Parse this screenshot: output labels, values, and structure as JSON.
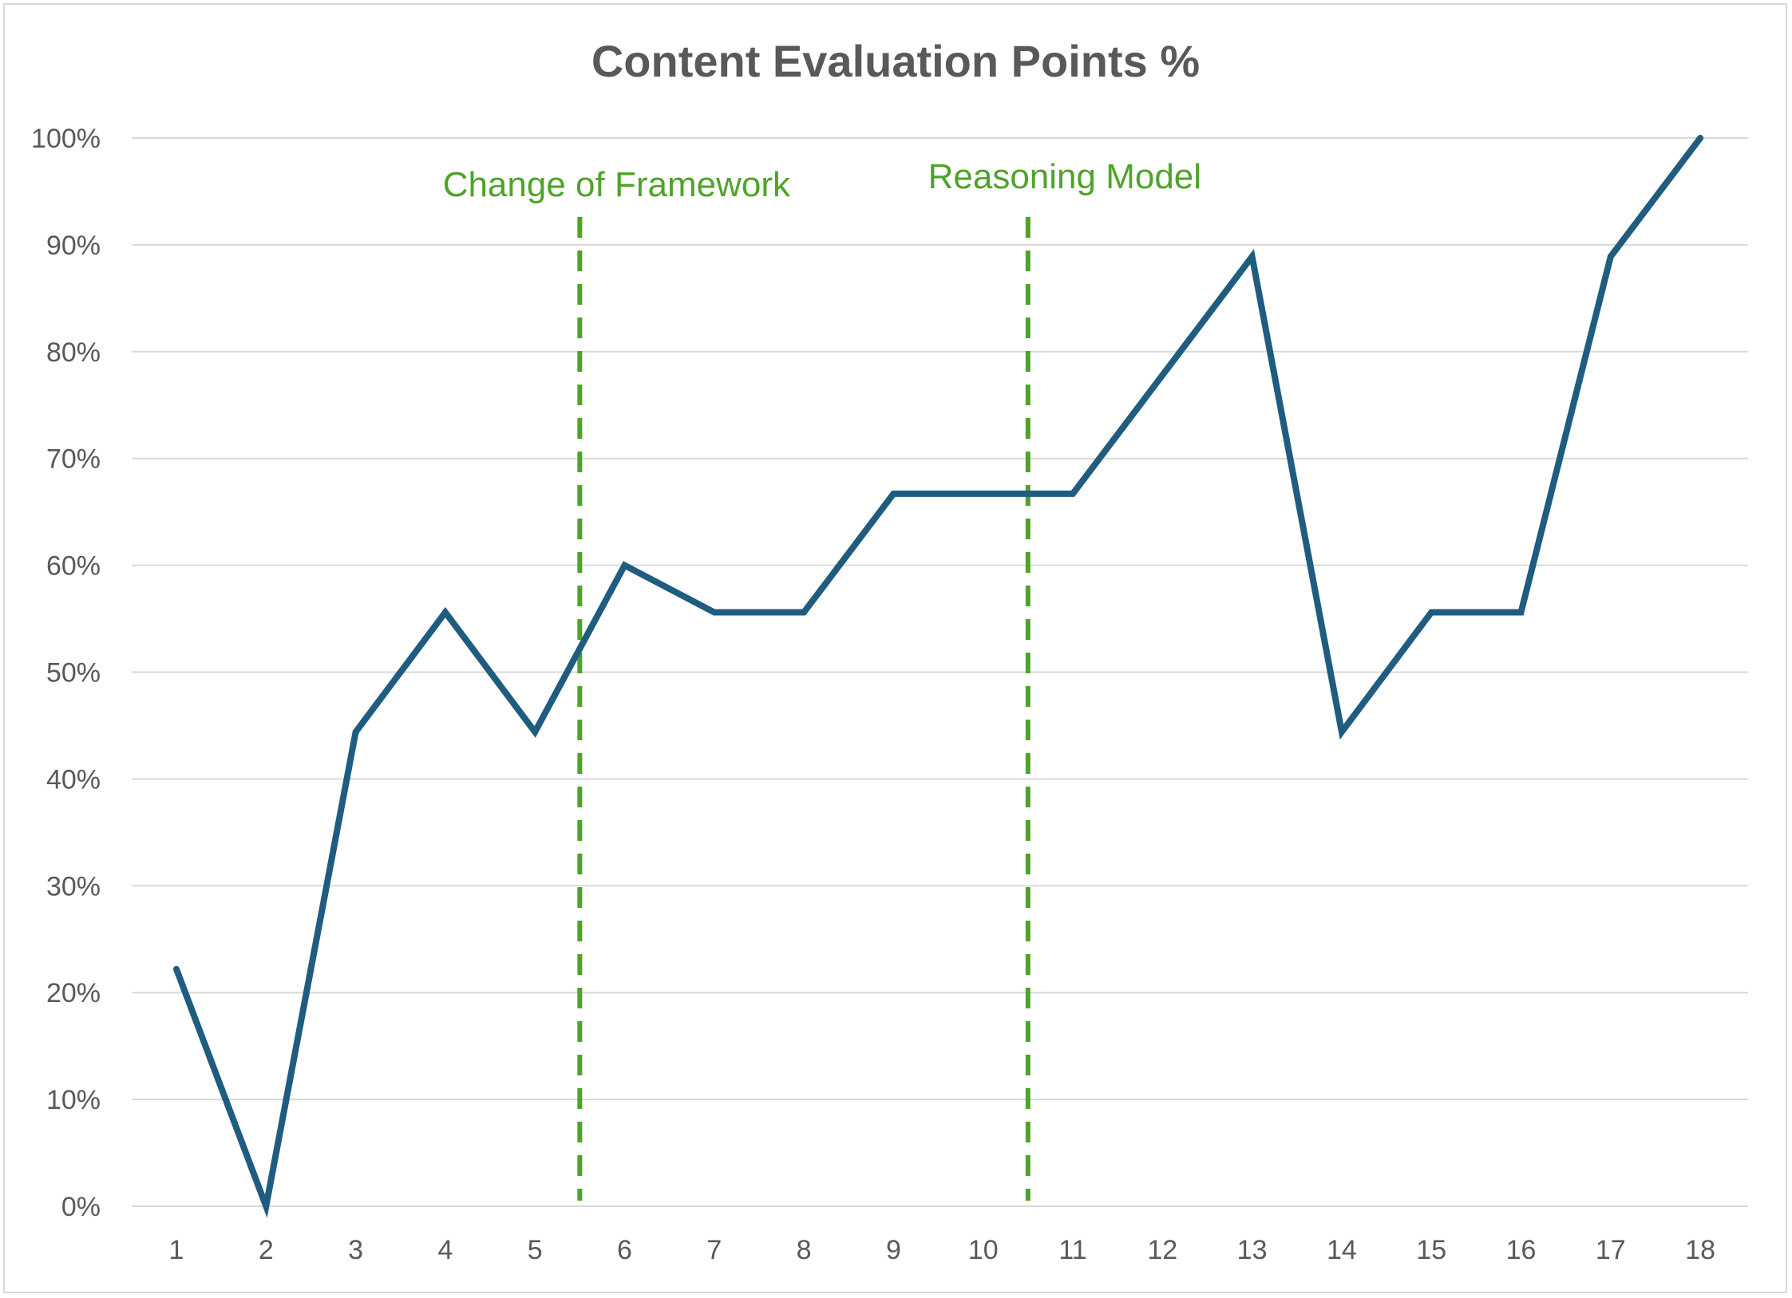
{
  "chart_data": {
    "type": "line",
    "title": "Content Evaluation Points %",
    "xlabel": "",
    "ylabel": "",
    "categories": [
      "1",
      "2",
      "3",
      "4",
      "5",
      "6",
      "7",
      "8",
      "9",
      "10",
      "11",
      "12",
      "13",
      "14",
      "15",
      "16",
      "17",
      "18"
    ],
    "series": [
      {
        "values": [
          22.2,
          0,
          44.4,
          55.6,
          44.4,
          60.0,
          55.6,
          55.6,
          66.7,
          66.7,
          66.7,
          77.8,
          88.9,
          44.4,
          55.6,
          55.6,
          88.9,
          100
        ],
        "color": "#1f5c80"
      }
    ],
    "ylim": [
      0,
      100
    ],
    "yticks": [
      "0%",
      "10%",
      "20%",
      "30%",
      "40%",
      "50%",
      "60%",
      "70%",
      "80%",
      "90%",
      "100%"
    ],
    "grid": true,
    "legend": "none",
    "annotations": [
      {
        "label": "Change of Framework",
        "x": 5.5,
        "color": "#4fa32a"
      },
      {
        "label": "Reasoning Model",
        "x": 10.5,
        "color": "#4fa32a"
      }
    ]
  }
}
